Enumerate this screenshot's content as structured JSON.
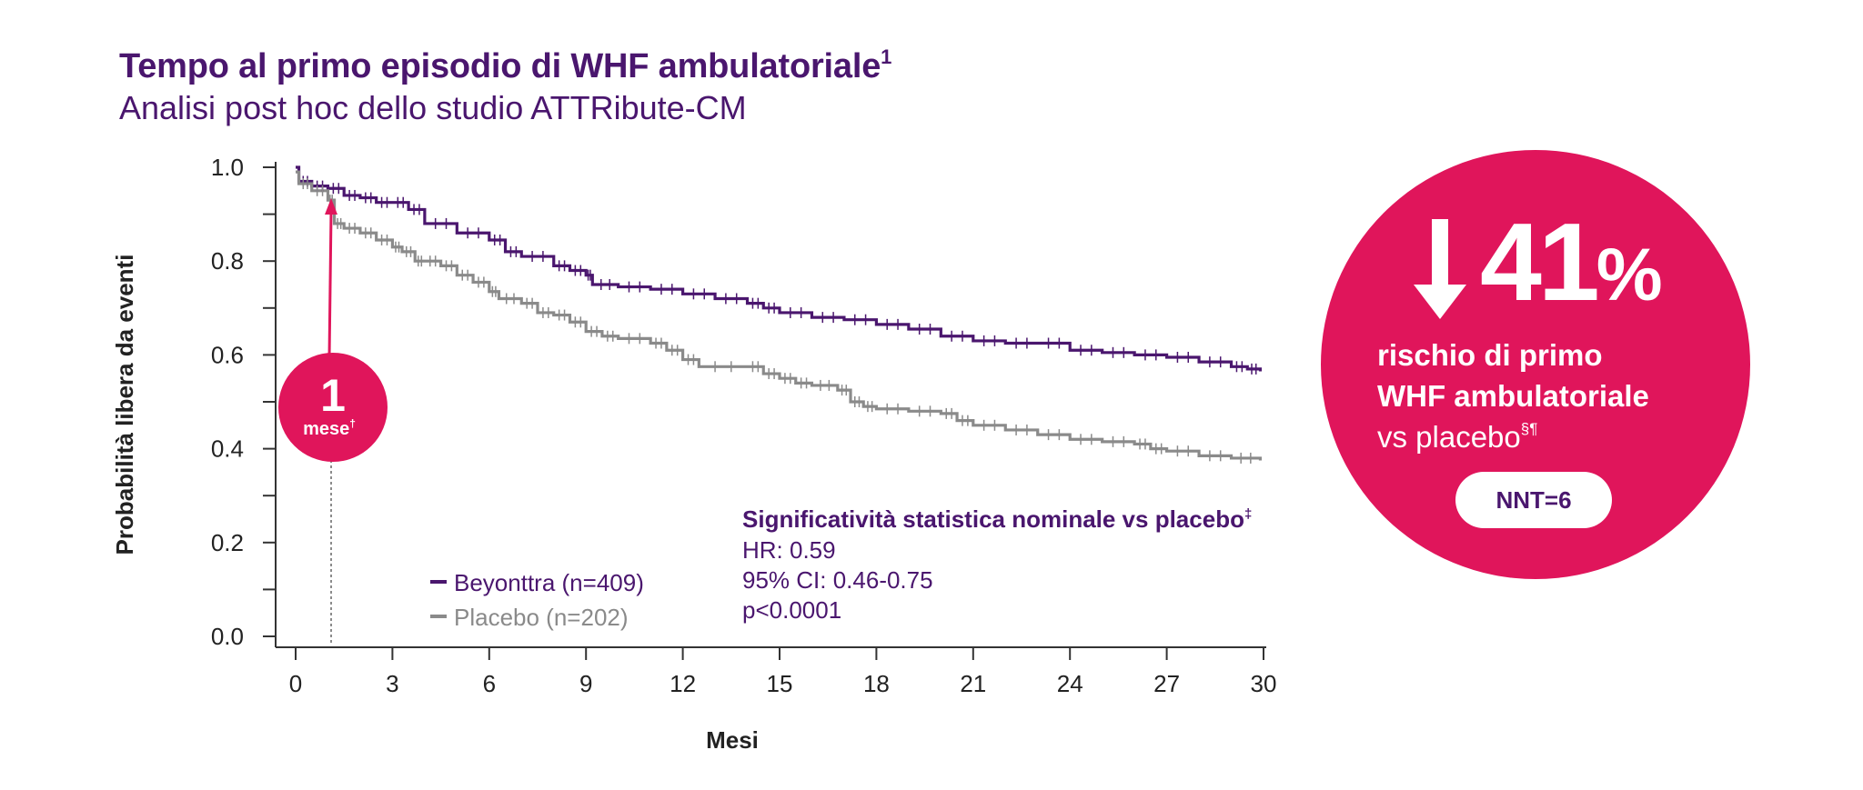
{
  "header": {
    "title": "Tempo al primo episodio di WHF ambulatoriale",
    "title_sup": "1",
    "subtitle": "Analisi post hoc dello studio ATTRibute-CM"
  },
  "callout_1m": {
    "value": "1",
    "label": "mese",
    "sup": "†",
    "x_month": 1.1
  },
  "stats": {
    "heading": "Significatività statistica nominale vs placebo",
    "heading_sup": "‡",
    "hr": "HR: 0.59",
    "ci": "95% CI: 0.46-0.75",
    "p": "p<0.0001"
  },
  "badge": {
    "value": "41",
    "unit": "%",
    "line1": "rischio di primo",
    "line2": "WHF ambulatoriale",
    "line3": "vs placebo",
    "line3_sup": "§¶",
    "nnt": "NNT=6"
  },
  "colors": {
    "accent": "#e0155b",
    "beyonttra": "#4a166e",
    "placebo": "#8a8a8a",
    "title": "#4a166e"
  },
  "chart_data": {
    "type": "line",
    "title": "Tempo al primo episodio di WHF ambulatoriale",
    "xlabel": "Mesi",
    "ylabel": "Probabilità libera da eventi",
    "xlim": [
      0,
      30
    ],
    "ylim": [
      0,
      1
    ],
    "x_ticks": [
      0,
      3,
      6,
      9,
      12,
      15,
      18,
      21,
      24,
      27,
      30
    ],
    "y_ticks": [
      "0.0",
      "0.2",
      "0.4",
      "0.6",
      "0.8",
      "1.0"
    ],
    "legend_position": "bottom-center",
    "series": [
      {
        "name": "Beyonttra (n=409)",
        "color": "#4a166e",
        "points": [
          [
            0,
            1.0
          ],
          [
            0.1,
            0.97
          ],
          [
            0.5,
            0.96
          ],
          [
            1,
            0.955
          ],
          [
            1.5,
            0.94
          ],
          [
            2,
            0.935
          ],
          [
            2.5,
            0.925
          ],
          [
            3,
            0.925
          ],
          [
            3.5,
            0.91
          ],
          [
            4,
            0.88
          ],
          [
            5,
            0.86
          ],
          [
            6,
            0.845
          ],
          [
            6.5,
            0.82
          ],
          [
            7,
            0.81
          ],
          [
            8,
            0.79
          ],
          [
            8.5,
            0.78
          ],
          [
            9,
            0.77
          ],
          [
            9.2,
            0.75
          ],
          [
            10,
            0.745
          ],
          [
            11,
            0.74
          ],
          [
            12,
            0.73
          ],
          [
            13,
            0.72
          ],
          [
            14,
            0.71
          ],
          [
            14.5,
            0.7
          ],
          [
            15,
            0.69
          ],
          [
            16,
            0.68
          ],
          [
            17,
            0.675
          ],
          [
            18,
            0.665
          ],
          [
            19,
            0.655
          ],
          [
            20,
            0.64
          ],
          [
            21,
            0.63
          ],
          [
            22,
            0.625
          ],
          [
            23,
            0.625
          ],
          [
            24,
            0.61
          ],
          [
            25,
            0.605
          ],
          [
            26,
            0.6
          ],
          [
            27,
            0.595
          ],
          [
            28,
            0.585
          ],
          [
            29,
            0.575
          ],
          [
            29.5,
            0.57
          ],
          [
            29.9,
            0.565
          ]
        ]
      },
      {
        "name": "Placebo (n=202)",
        "color": "#8a8a8a",
        "points": [
          [
            0,
            0.99
          ],
          [
            0.1,
            0.965
          ],
          [
            0.5,
            0.95
          ],
          [
            1,
            0.93
          ],
          [
            1.2,
            0.88
          ],
          [
            1.5,
            0.87
          ],
          [
            2,
            0.86
          ],
          [
            2.5,
            0.845
          ],
          [
            3,
            0.83
          ],
          [
            3.3,
            0.82
          ],
          [
            3.7,
            0.8
          ],
          [
            4,
            0.8
          ],
          [
            4.5,
            0.79
          ],
          [
            5,
            0.77
          ],
          [
            5.5,
            0.755
          ],
          [
            6,
            0.735
          ],
          [
            6.3,
            0.72
          ],
          [
            7,
            0.71
          ],
          [
            7.5,
            0.69
          ],
          [
            8,
            0.685
          ],
          [
            8.5,
            0.67
          ],
          [
            9,
            0.65
          ],
          [
            9.5,
            0.64
          ],
          [
            10,
            0.635
          ],
          [
            11,
            0.625
          ],
          [
            11.5,
            0.61
          ],
          [
            12,
            0.59
          ],
          [
            12.5,
            0.575
          ],
          [
            14,
            0.575
          ],
          [
            14.5,
            0.56
          ],
          [
            15,
            0.55
          ],
          [
            15.5,
            0.54
          ],
          [
            16,
            0.535
          ],
          [
            16.8,
            0.525
          ],
          [
            17.2,
            0.5
          ],
          [
            17.6,
            0.49
          ],
          [
            18,
            0.485
          ],
          [
            19,
            0.48
          ],
          [
            20,
            0.475
          ],
          [
            20.5,
            0.46
          ],
          [
            21,
            0.45
          ],
          [
            22,
            0.44
          ],
          [
            23,
            0.43
          ],
          [
            24,
            0.42
          ],
          [
            25,
            0.415
          ],
          [
            26,
            0.41
          ],
          [
            26.5,
            0.4
          ],
          [
            27,
            0.395
          ],
          [
            28,
            0.385
          ],
          [
            29,
            0.38
          ],
          [
            29.9,
            0.375
          ]
        ]
      }
    ]
  }
}
